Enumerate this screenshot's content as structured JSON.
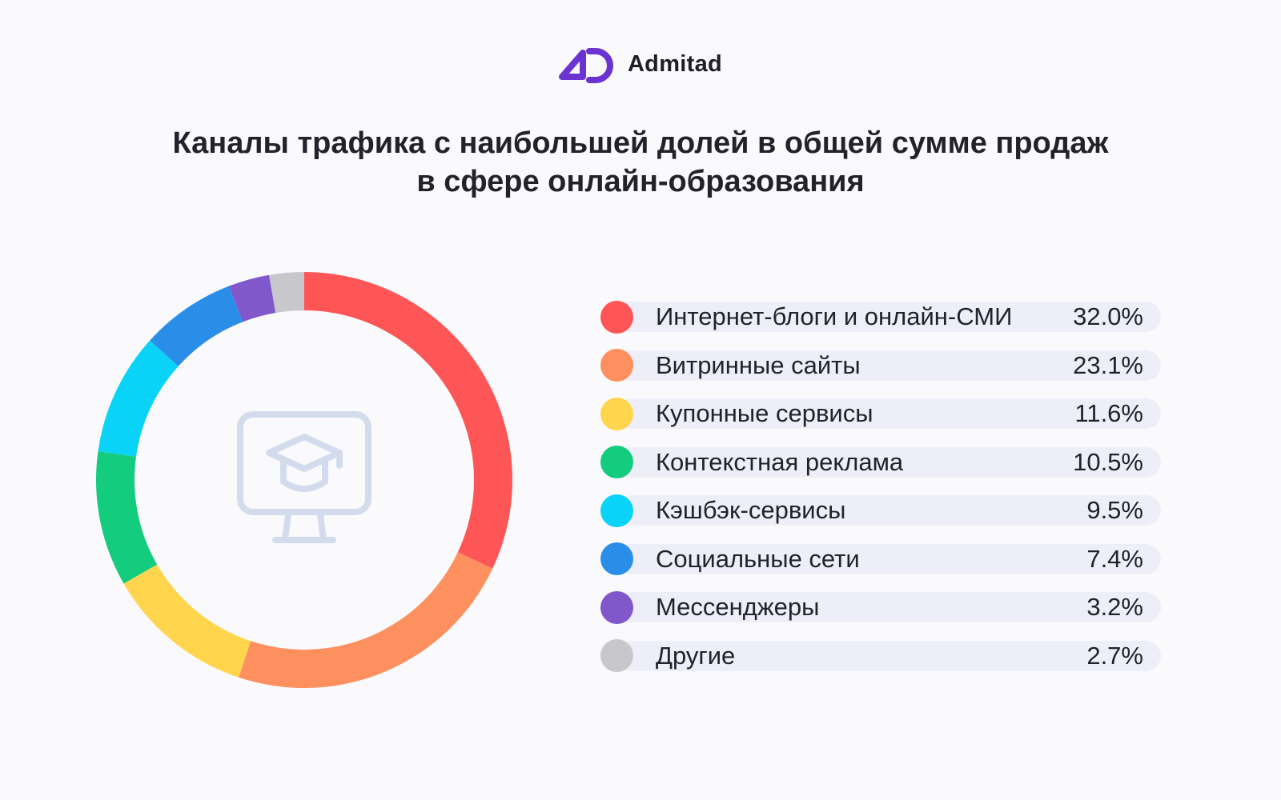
{
  "brand": {
    "name": "Admitad",
    "color": "#6b34d2"
  },
  "chart_data": {
    "type": "pie",
    "title": [
      "Каналы трафика с наибольшей долей в общей сумме продаж",
      "в сфере онлайн-образования"
    ],
    "center_icon": "graduation-cap-monitor-icon",
    "categories": [
      "Интернет-блоги и онлайн-СМИ",
      "Витринные сайты",
      "Купонные сервисы",
      "Контекстная реклама",
      "Кэшбэк-сервисы",
      "Социальные сети",
      "Мессенджеры",
      "Другие"
    ],
    "values": [
      32.0,
      23.1,
      11.6,
      10.5,
      9.5,
      7.4,
      3.2,
      2.7
    ],
    "value_labels": [
      "32.0%",
      "23.1%",
      "11.6%",
      "10.5%",
      "9.5%",
      "7.4%",
      "3.2%",
      "2.7%"
    ],
    "colors": [
      "#fe5656",
      "#fe9060",
      "#ffd54e",
      "#14cc7e",
      "#09d4f7",
      "#2a8ee8",
      "#8058cc",
      "#c8c8cc"
    ],
    "legend_position": "right"
  }
}
